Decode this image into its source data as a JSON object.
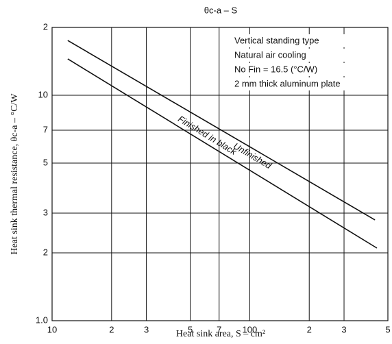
{
  "chart_data": {
    "type": "line",
    "title": "θc-a – S",
    "xlabel": "Heat sink area, S – cm²",
    "ylabel": "Heat sink thermal resistance, θc-a – °C/W",
    "annotations": [
      "Vertical standing type",
      "Natural air cooling",
      "No Fin = 16.5 (°C/W)",
      "2 mm thick aluminum plate"
    ],
    "log_x": true,
    "log_y": true,
    "grid": true,
    "xlim": [
      10,
      500
    ],
    "ylim": [
      1,
      20
    ],
    "xticks": [
      10,
      {
        "value": 20,
        "label": "2"
      },
      {
        "value": 30,
        "label": "3"
      },
      {
        "value": 50,
        "label": "5"
      },
      {
        "value": 70,
        "label": "7"
      },
      100,
      {
        "value": 200,
        "label": "2"
      },
      {
        "value": 300,
        "label": "3"
      },
      {
        "value": 500,
        "label": "5"
      }
    ],
    "yticks": [
      {
        "value": 1,
        "label": "1.0"
      },
      2,
      3,
      5,
      7,
      10,
      {
        "value": 20,
        "label": "2"
      }
    ],
    "series": [
      {
        "name": "Unfinished",
        "color": "#111111",
        "x": [
          12,
          430
        ],
        "values": [
          17.5,
          2.8
        ]
      },
      {
        "name": "Finished in black",
        "color": "#111111",
        "x": [
          12,
          440
        ],
        "values": [
          14.5,
          2.1
        ]
      }
    ]
  }
}
